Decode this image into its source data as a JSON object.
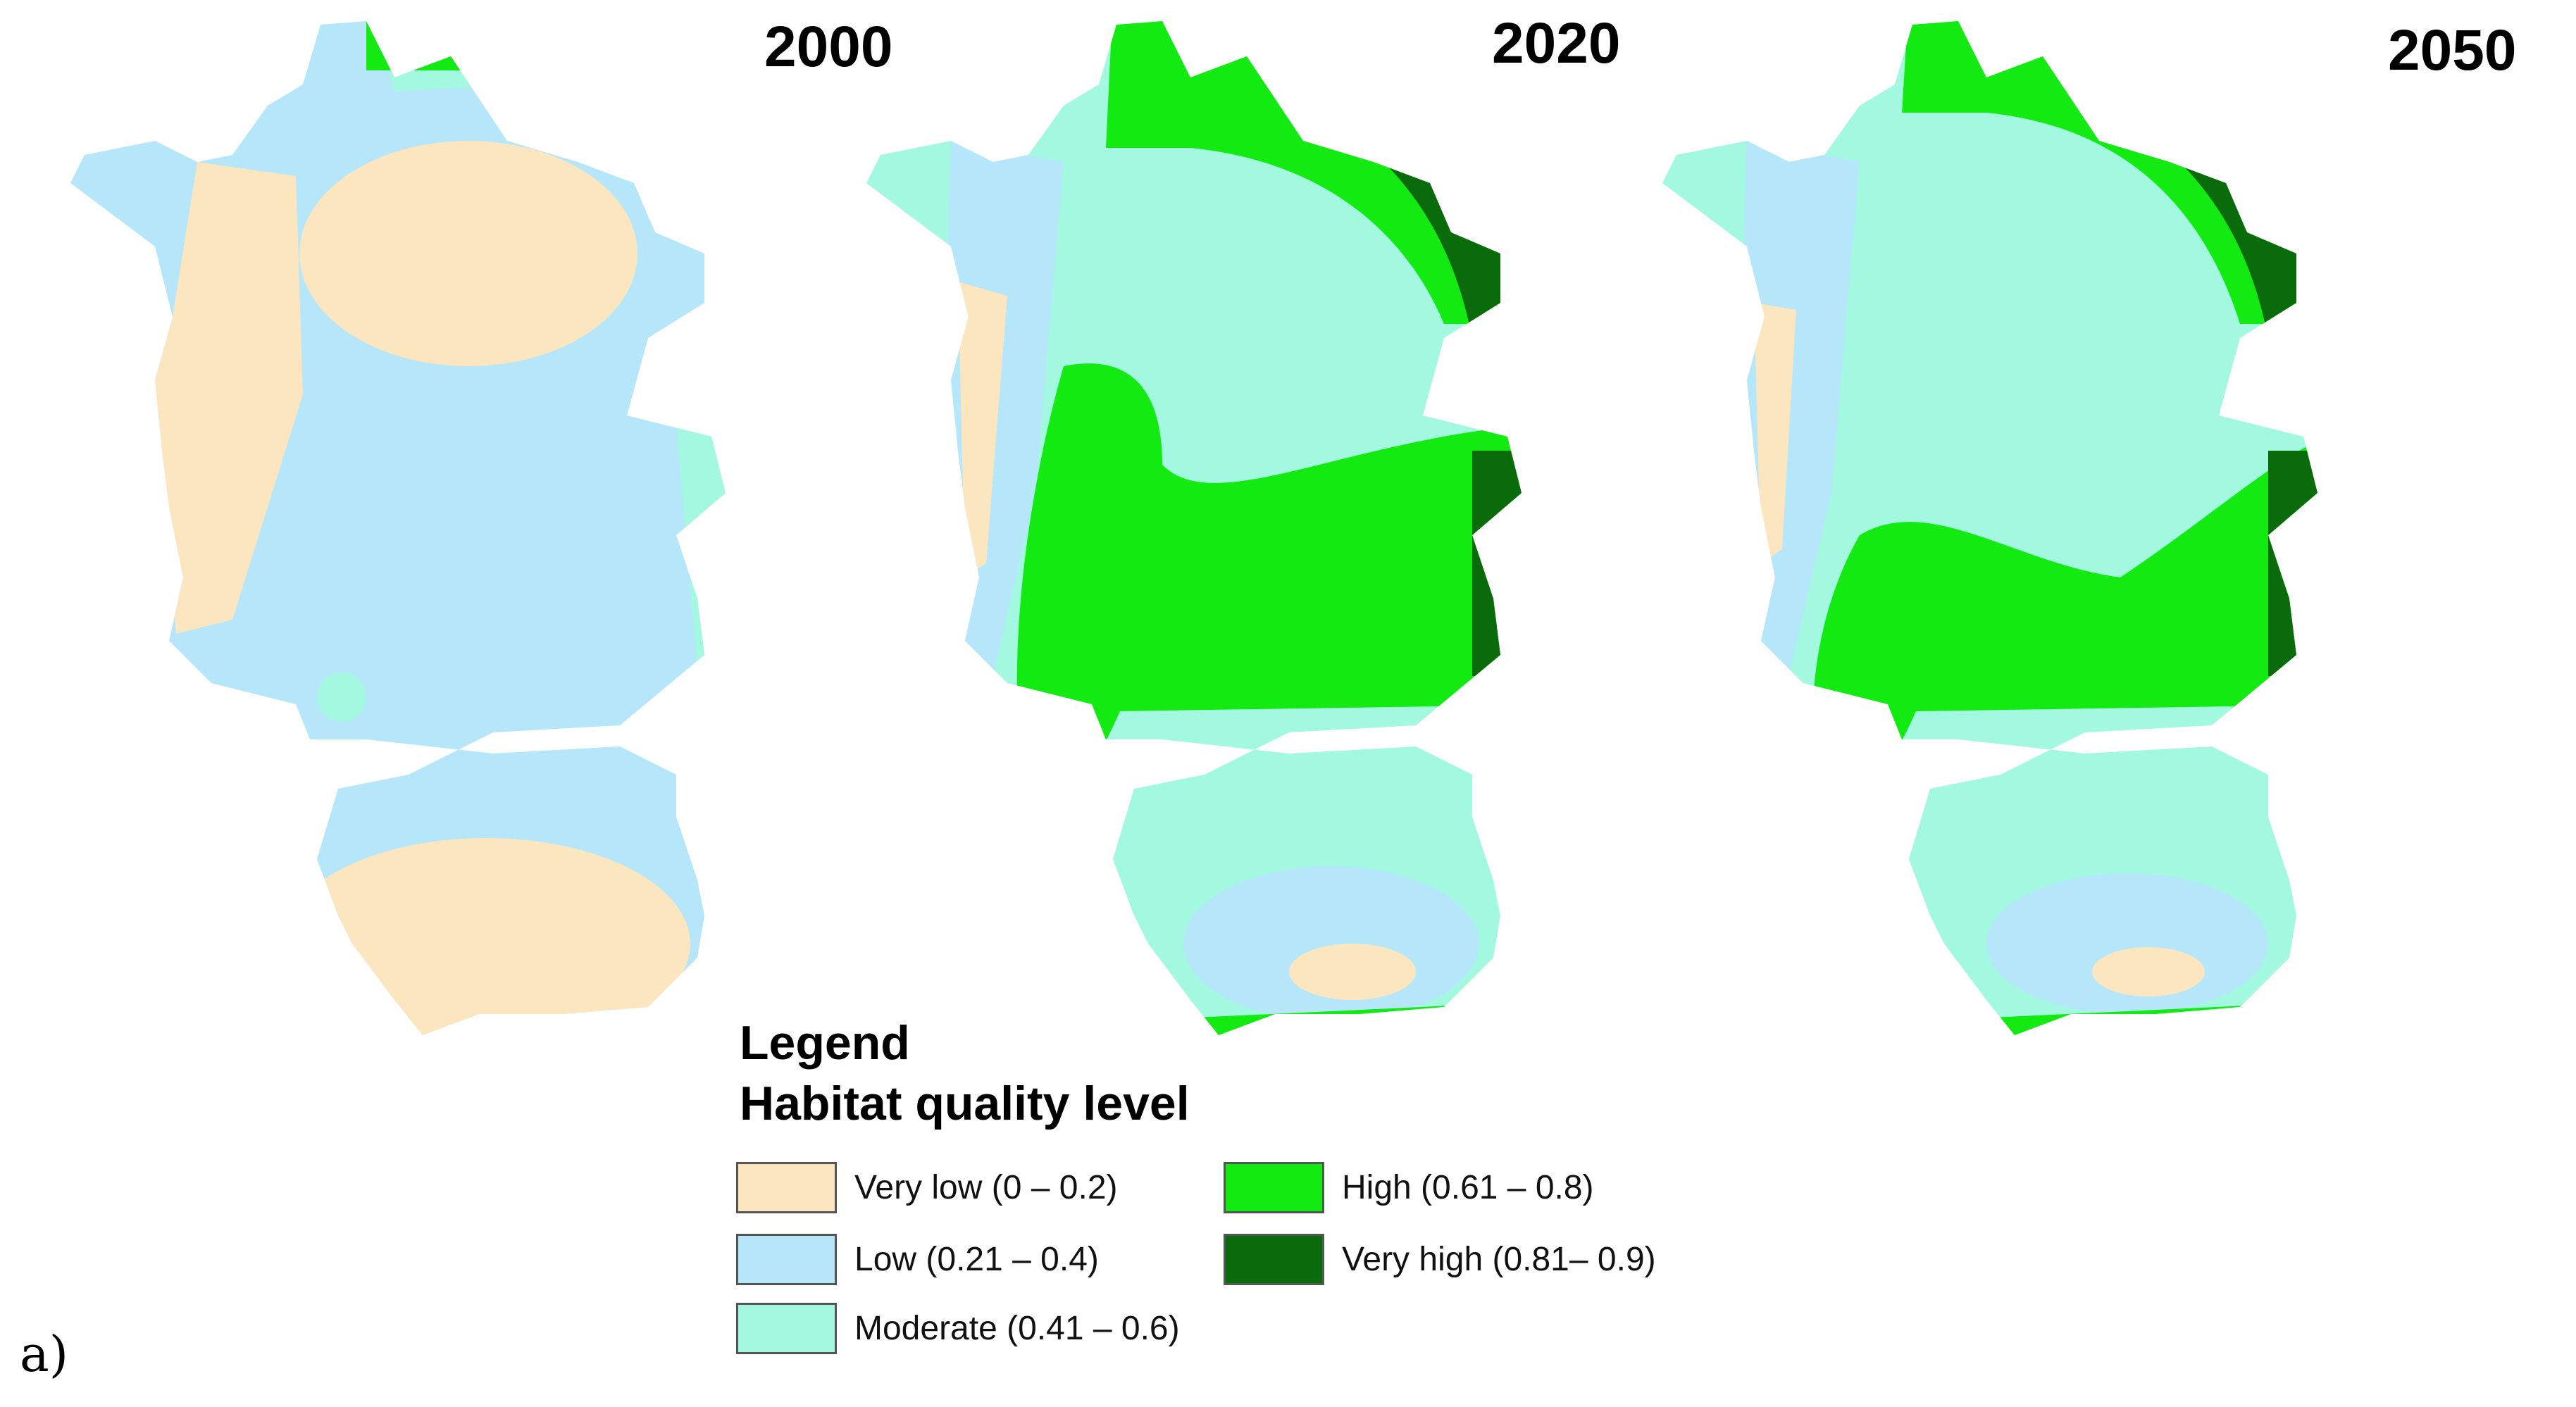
{
  "maps": [
    {
      "year": "2000"
    },
    {
      "year": "2020"
    },
    {
      "year": "2050"
    }
  ],
  "legend": {
    "title": "Legend",
    "subtitle": "Habitat quality level",
    "items": [
      {
        "label": "Very low (0 – 0.2)",
        "color": "#FCE6C0"
      },
      {
        "label": "Low (0.21 – 0.4)",
        "color": "#B5E6FA"
      },
      {
        "label": "Moderate (0.41 – 0.6)",
        "color": "#A3F8E0"
      },
      {
        "label": "High (0.61 – 0.8)",
        "color": "#12EA12"
      },
      {
        "label": "Very high (0.81– 0.9)",
        "color": "#0A6B0A"
      }
    ]
  },
  "panel_label": "a)"
}
